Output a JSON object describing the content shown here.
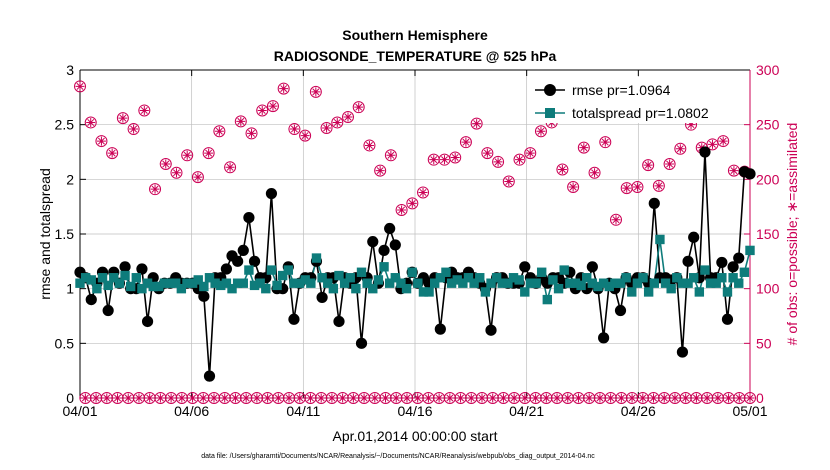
{
  "chart_data": {
    "type": "line",
    "title": "Southern Hemisphere",
    "subtitle": "RADIOSONDE_TEMPERATURE @ 525 hPa",
    "xlabel": "Apr.01,2014 00:00:00 start",
    "ylabel": "rmse and totalspread",
    "y2label": "# of obs: o=possible; ∗=assimilated",
    "footnote": "data file: /Users/gharamti/Documents/NCAR/Reanalysis/~/Documents/NCAR/Reanalysis/webpub/obs_diag_output_2014-04.nc",
    "xlim": [
      0,
      30
    ],
    "ylim": [
      0,
      3
    ],
    "y2lim": [
      0,
      300
    ],
    "x_ticks": [
      0,
      5,
      10,
      15,
      20,
      25,
      30
    ],
    "x_ticklabels": [
      "04/01",
      "04/06",
      "04/11",
      "04/16",
      "04/21",
      "04/26",
      "05/01"
    ],
    "y_ticks": [
      0,
      0.5,
      1,
      1.5,
      2,
      2.5,
      3
    ],
    "y_ticklabels": [
      "0",
      "0.5",
      "1",
      "1.5",
      "2",
      "2.5",
      "3"
    ],
    "y2_ticks": [
      0,
      50,
      100,
      150,
      200,
      250,
      300
    ],
    "y2_ticklabels": [
      "0",
      "50",
      "100",
      "150",
      "200",
      "250",
      "300"
    ],
    "grid": true,
    "legend_position": "top-right",
    "colors": {
      "rmse": "#000000",
      "spread": "#0e7c7b",
      "obs": "#cc0055",
      "grid": "#bfbfbf"
    },
    "series": [
      {
        "name": "rmse pr=1.0964",
        "marker": "circle",
        "values": [
          1.15,
          1.1,
          0.9,
          1.05,
          1.15,
          0.8,
          1.15,
          1.05,
          1.2,
          1.0,
          1.0,
          1.18,
          0.7,
          1.1,
          1.0,
          1.05,
          1.05,
          1.1,
          1.05,
          1.05,
          1.05,
          1.0,
          0.93,
          0.2,
          1.1,
          1.1,
          1.18,
          1.3,
          1.25,
          1.35,
          1.65,
          1.25,
          1.1,
          1.1,
          1.87,
          1.0,
          1.0,
          1.2,
          0.72,
          1.05,
          1.1,
          1.1,
          1.25,
          0.92,
          1.1,
          1.1,
          0.7,
          1.1,
          1.05,
          1.1,
          0.5,
          1.1,
          1.43,
          1.05,
          1.35,
          1.55,
          1.4,
          1.0,
          1.05,
          1.15,
          1.05,
          1.1,
          1.05,
          1.1,
          0.63,
          1.1,
          1.15,
          1.1,
          1.1,
          1.15,
          1.1,
          1.05,
          1.0,
          0.62,
          1.1,
          1.1,
          1.05,
          1.05,
          1.05,
          1.2,
          1.1,
          1.05,
          1.1,
          1.05,
          1.1,
          1.1,
          1.05,
          1.15,
          1.0,
          1.1,
          1.0,
          1.2,
          1.0,
          0.55,
          1.05,
          1.0,
          0.8,
          1.1,
          1.05,
          1.1,
          1.1,
          1.05,
          1.78,
          1.1,
          1.1,
          1.08,
          1.1,
          0.42,
          1.25,
          1.47,
          1.1,
          2.25,
          1.1,
          1.1,
          1.24,
          0.72,
          1.2,
          1.28,
          2.07,
          2.05
        ]
      },
      {
        "name": "totalspread pr=1.0802",
        "marker": "square",
        "values": [
          1.05,
          1.1,
          1.08,
          1.0,
          1.1,
          1.03,
          1.1,
          1.05,
          1.12,
          1.02,
          1.1,
          1.0,
          1.05,
          1.02,
          1.02,
          1.05,
          1.05,
          1.05,
          1.0,
          1.05,
          1.05,
          1.08,
          1.02,
          1.1,
          1.05,
          1.03,
          1.05,
          1.0,
          1.05,
          1.05,
          1.17,
          1.03,
          1.05,
          1.0,
          1.17,
          1.03,
          1.12,
          1.17,
          1.05,
          1.05,
          1.08,
          1.05,
          1.28,
          1.1,
          1.05,
          1.0,
          1.12,
          1.05,
          1.1,
          1.0,
          1.15,
          1.05,
          1.0,
          1.08,
          1.2,
          1.05,
          1.1,
          1.05,
          1.0,
          1.15,
          1.05,
          0.97,
          0.97,
          1.05,
          1.1,
          1.15,
          1.05,
          1.08,
          1.05,
          1.1,
          1.05,
          1.1,
          0.97,
          1.05,
          1.1,
          1.05,
          1.05,
          1.1,
          1.08,
          0.97,
          1.05,
          1.05,
          1.15,
          0.9,
          1.08,
          1.0,
          1.17,
          1.05,
          1.05,
          1.03,
          1.1,
          1.05,
          1.02,
          1.05,
          1.02,
          1.05,
          1.05,
          1.1,
          0.97,
          1.05,
          1.1,
          0.97,
          1.05,
          1.45,
          1.05,
          1.0,
          1.1,
          1.05,
          1.05,
          1.1,
          0.97,
          1.17,
          1.05,
          1.05,
          1.1,
          0.97,
          1.1,
          1.05,
          1.15,
          1.35
        ]
      },
      {
        "name": "possible",
        "marker": "open-circle",
        "axis": "right",
        "values": [
          285,
          0,
          252,
          0,
          235,
          0,
          224,
          0,
          256,
          0,
          246,
          0,
          263,
          0,
          191,
          0,
          214,
          0,
          206,
          0,
          222,
          0,
          202,
          0,
          224,
          0,
          244,
          0,
          211,
          0,
          253,
          0,
          242,
          0,
          263,
          0,
          267,
          0,
          283,
          0,
          246,
          0,
          240,
          0,
          280,
          0,
          247,
          0,
          252,
          0,
          257,
          0,
          266,
          0,
          231,
          0,
          208,
          0,
          222,
          0,
          172,
          0,
          178,
          0,
          188,
          0,
          218,
          0,
          218,
          0,
          220,
          0,
          234,
          0,
          251,
          0,
          224,
          0,
          216,
          0,
          198,
          0,
          218,
          0,
          224,
          0,
          244,
          0,
          252,
          0,
          209,
          0,
          193,
          0,
          229,
          0,
          206,
          0,
          234,
          0,
          163,
          0,
          192,
          0,
          193,
          0,
          213,
          0,
          194,
          0,
          214,
          0,
          228,
          0,
          250,
          0,
          229,
          0,
          232,
          0,
          235,
          0,
          208,
          0,
          207,
          0
        ]
      },
      {
        "name": "assimilated",
        "marker": "asterisk",
        "axis": "right",
        "values": [
          285,
          0,
          252,
          0,
          235,
          0,
          224,
          0,
          256,
          0,
          246,
          0,
          263,
          0,
          191,
          0,
          214,
          0,
          206,
          0,
          222,
          0,
          202,
          0,
          224,
          0,
          244,
          0,
          211,
          0,
          253,
          0,
          242,
          0,
          263,
          0,
          267,
          0,
          283,
          0,
          246,
          0,
          240,
          0,
          280,
          0,
          247,
          0,
          252,
          0,
          257,
          0,
          266,
          0,
          231,
          0,
          208,
          0,
          222,
          0,
          172,
          0,
          178,
          0,
          188,
          0,
          218,
          0,
          218,
          0,
          220,
          0,
          234,
          0,
          251,
          0,
          224,
          0,
          216,
          0,
          198,
          0,
          218,
          0,
          224,
          0,
          244,
          0,
          252,
          0,
          209,
          0,
          193,
          0,
          229,
          0,
          206,
          0,
          234,
          0,
          163,
          0,
          192,
          0,
          193,
          0,
          213,
          0,
          194,
          0,
          214,
          0,
          228,
          0,
          250,
          0,
          229,
          0,
          232,
          0,
          235,
          0,
          208,
          0,
          207,
          0
        ]
      }
    ]
  }
}
